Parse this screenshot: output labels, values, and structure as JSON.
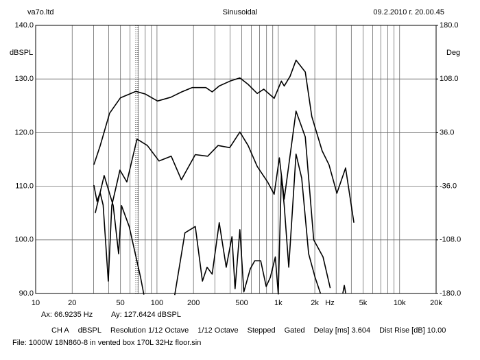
{
  "chart_data": {
    "type": "line",
    "header_left": "va7o.ltd",
    "title": "Sinusoidal",
    "header_right": "09.2.2010 г. 20.00.45",
    "y_label": "dBSPL",
    "y2_label": "Deg",
    "x_unit": "Hz",
    "log_x": true,
    "grid": true,
    "xlim": [
      10,
      20000
    ],
    "xticks": [
      10,
      20,
      50,
      100,
      200,
      500,
      {
        "value": 1000,
        "label": "1k"
      },
      {
        "value": 2000,
        "label": "2k"
      },
      {
        "value": 5000,
        "label": "5k"
      },
      {
        "value": 10000,
        "label": "10k"
      },
      {
        "value": 20000,
        "label": "20k"
      }
    ],
    "x_minor_ticks": [
      30,
      40,
      60,
      70,
      80,
      90,
      300,
      400,
      600,
      700,
      800,
      900,
      3000,
      4000,
      6000,
      7000,
      8000,
      9000
    ],
    "ylim": [
      90,
      140
    ],
    "yticks": [
      {
        "value": 90,
        "label": "90.0"
      },
      {
        "value": 100,
        "label": "100.0"
      },
      {
        "value": 110,
        "label": "110.0"
      },
      {
        "value": 120,
        "label": "120.0"
      },
      {
        "value": 130,
        "label": "130.0"
      },
      {
        "value": 140,
        "label": "140.0"
      }
    ],
    "y2lim": [
      -180,
      180
    ],
    "y2ticks": [
      {
        "value": -180,
        "label": "-180.0"
      },
      {
        "value": -108,
        "label": "-108.0"
      },
      {
        "value": -36,
        "label": "-36.0"
      },
      {
        "value": 36,
        "label": "36.0"
      },
      {
        "value": 108,
        "label": "108.0"
      },
      {
        "value": 180,
        "label": "180.0"
      }
    ],
    "series": [
      {
        "color": "#000000",
        "x": [
          30.2,
          34,
          40.7,
          50,
          67,
          80,
          101,
          130,
          160,
          195,
          253,
          285,
          326,
          400,
          482,
          564,
          670,
          760,
          925,
          1060,
          1120,
          1250,
          1400,
          1670,
          1890,
          2300,
          2620,
          3040,
          3590,
          4200
        ],
        "values": [
          114.0,
          117.5,
          123.6,
          126.5,
          127.7,
          127.2,
          125.9,
          126.6,
          127.6,
          128.4,
          128.4,
          127.6,
          128.7,
          129.6,
          130.2,
          129.0,
          127.3,
          128.1,
          126.4,
          129.6,
          128.7,
          130.5,
          133.5,
          131.3,
          123.0,
          116.6,
          114.0,
          108.7,
          113.4,
          103.2
        ]
      },
      {
        "color": "#000000",
        "x": [
          30.2,
          32,
          34,
          36,
          39.7,
          42.4,
          49.5,
          56.5,
          68.5,
          83.3,
          104,
          131,
          159,
          207,
          262,
          319,
          398,
          482,
          564,
          670,
          816,
          925,
          1020,
          1120,
          1400,
          1670,
          1960,
          2340,
          2680
        ],
        "values": [
          110.2,
          107.2,
          108.8,
          106.5,
          92.3,
          106.4,
          113.0,
          110.8,
          118.8,
          117.6,
          114.7,
          115.6,
          111.2,
          115.9,
          115.6,
          117.6,
          117.2,
          120.1,
          117.6,
          113.7,
          110.8,
          108.5,
          115.3,
          107.6,
          124.0,
          119.2,
          100.0,
          96.8,
          91.0
        ]
      },
      {
        "color": "#000000",
        "x": [
          31,
          36.7,
          43.6,
          48.3,
          51,
          59,
          73.3,
          78,
          120,
          140,
          170,
          207,
          237,
          259,
          285,
          326,
          372,
          415,
          440,
          482,
          520,
          588,
          640,
          716,
          795,
          860,
          945,
          1000,
          1060,
          1120,
          1220,
          1400,
          1560,
          1780,
          2010,
          2230,
          3300,
          3400,
          3500,
          3600
        ],
        "values": [
          105.0,
          112.0,
          106.4,
          97.4,
          106.4,
          102.5,
          93.0,
          89.8,
          null,
          89.7,
          101.3,
          102.5,
          92.3,
          94.9,
          93.6,
          103.2,
          94.9,
          100.6,
          90.9,
          101.9,
          90.3,
          94.6,
          96.1,
          96.1,
          91.3,
          93.0,
          96.8,
          89.9,
          112.0,
          106.4,
          94.9,
          116.0,
          111.5,
          97.4,
          93.0,
          90.0,
          null,
          90.0,
          91.5,
          90.0
        ]
      }
    ],
    "cursor": {
      "x": 66.9235,
      "x_text": "Ax: 66.9235 Hz",
      "y_text": "Ay: 127.6424 dBSPL"
    },
    "info": [
      "CH A",
      "dBSPL",
      "Resolution 1/12 Octave",
      "1/12 Octave",
      "Stepped",
      "Gated",
      "Delay [ms] 3.604",
      "Dist Rise [dB] 10.00"
    ],
    "file": "File: 1000W 18N860-8 in vented box 170L 32Hz floor.sin"
  }
}
